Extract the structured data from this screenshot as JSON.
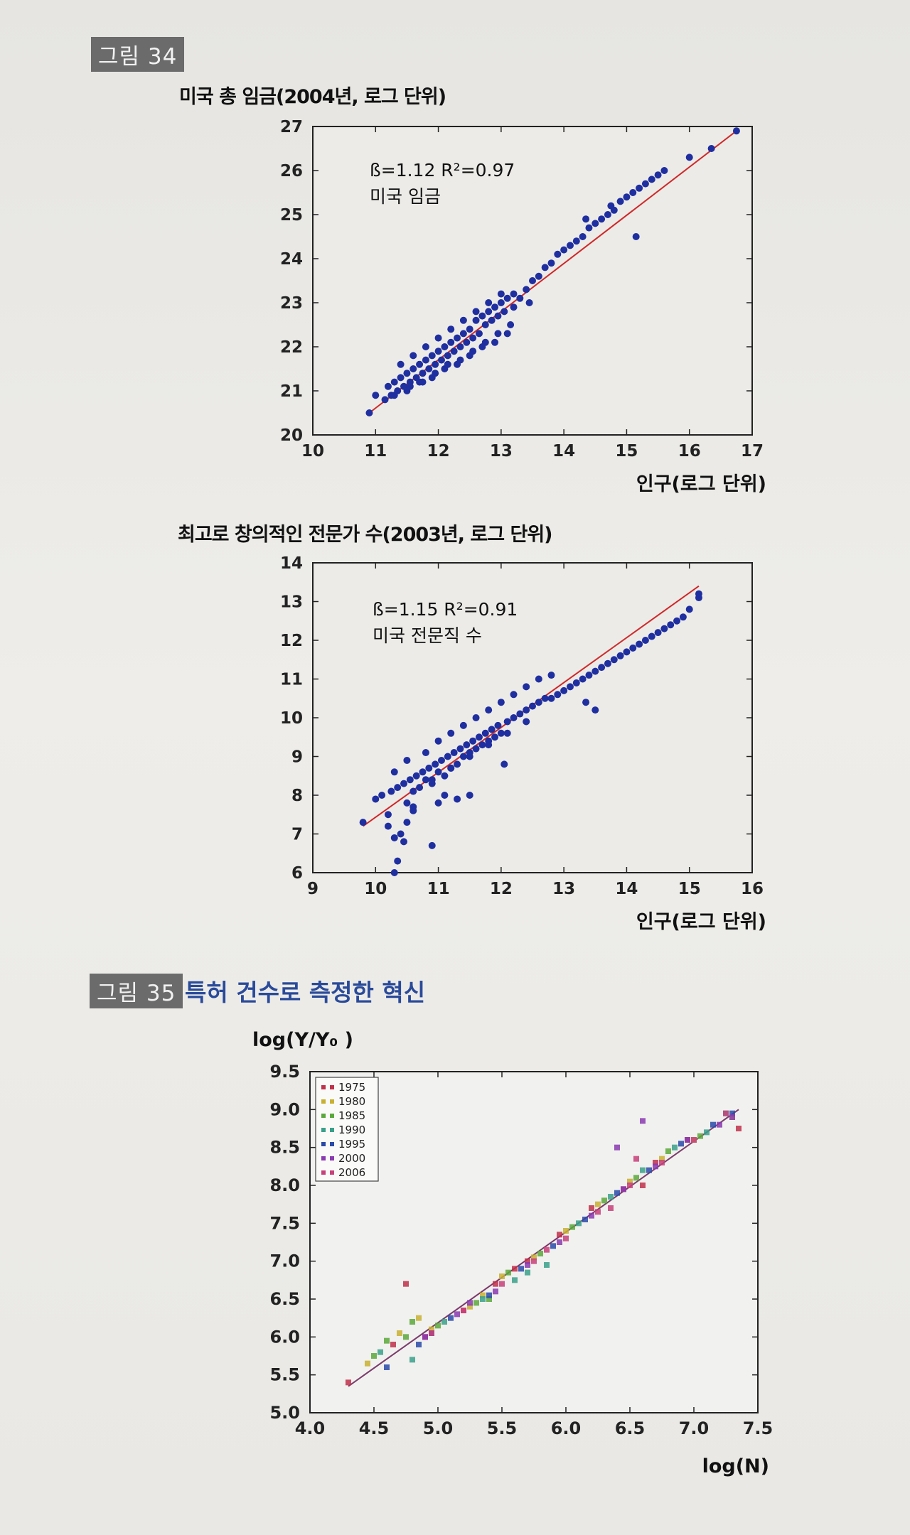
{
  "figure34": {
    "label": "그림 34"
  },
  "figure35": {
    "label": "그림 35",
    "caption": "특허 건수로 측정한 혁신"
  },
  "chart_data": [
    {
      "type": "scatter",
      "title": "미국 총 임금(2004년, 로그 단위)",
      "xlabel": "인구(로그 단위)",
      "ylabel": "",
      "xlim": [
        10,
        17
      ],
      "ylim": [
        20,
        27
      ],
      "xticks": [
        10,
        11,
        12,
        13,
        14,
        15,
        16,
        17
      ],
      "yticks": [
        20,
        21,
        22,
        23,
        24,
        25,
        26,
        27
      ],
      "annotation_line1": "ß=1.12   R²=0.97",
      "annotation_line2": "미국 임금",
      "fit_line": {
        "x": [
          10.9,
          16.75
        ],
        "y": [
          20.5,
          26.9
        ]
      },
      "series": [
        {
          "x": [
            10.9,
            11.0,
            11.15,
            11.2,
            11.25,
            11.3,
            11.35,
            11.4,
            11.45,
            11.5,
            11.55,
            11.6,
            11.65,
            11.7,
            11.75,
            11.8,
            11.85,
            11.9,
            11.95,
            12.0,
            12.05,
            12.1,
            12.15,
            12.2,
            12.25,
            12.3,
            12.35,
            12.4,
            12.45,
            12.5,
            12.55,
            12.6,
            12.65,
            12.7,
            12.75,
            12.8,
            12.85,
            12.9,
            12.95,
            13.0,
            13.05,
            13.1,
            13.2,
            13.3,
            13.4,
            13.5,
            13.6,
            13.7,
            13.8,
            13.9,
            14.0,
            14.1,
            14.2,
            14.3,
            14.4,
            14.5,
            14.6,
            14.7,
            14.8,
            14.9,
            15.0,
            15.1,
            15.2,
            15.3,
            15.4,
            15.5,
            15.6,
            16.0,
            16.35,
            16.75,
            11.3,
            11.5,
            11.7,
            11.9,
            12.1,
            12.3,
            12.5,
            12.7,
            12.9,
            13.1,
            11.4,
            11.6,
            11.8,
            12.0,
            12.2,
            12.4,
            12.6,
            12.8,
            13.0,
            13.2,
            11.55,
            11.75,
            11.95,
            12.15,
            12.35,
            12.55,
            12.75,
            12.95,
            13.15,
            14.35,
            15.15,
            14.75,
            13.45
          ],
          "y": [
            20.5,
            20.9,
            20.8,
            21.1,
            20.9,
            21.2,
            21.0,
            21.3,
            21.1,
            21.4,
            21.2,
            21.5,
            21.3,
            21.6,
            21.4,
            21.7,
            21.5,
            21.8,
            21.6,
            21.9,
            21.7,
            22.0,
            21.8,
            22.1,
            21.9,
            22.2,
            22.0,
            22.3,
            22.1,
            22.4,
            22.2,
            22.6,
            22.3,
            22.7,
            22.5,
            22.8,
            22.6,
            22.9,
            22.7,
            23.0,
            22.8,
            23.1,
            22.9,
            23.1,
            23.3,
            23.5,
            23.6,
            23.8,
            23.9,
            24.1,
            24.2,
            24.3,
            24.4,
            24.5,
            24.7,
            24.8,
            24.9,
            25.0,
            25.1,
            25.3,
            25.4,
            25.5,
            25.6,
            25.7,
            25.8,
            25.9,
            26.0,
            26.3,
            26.5,
            26.9,
            20.9,
            21.0,
            21.2,
            21.3,
            21.5,
            21.6,
            21.8,
            22.0,
            22.1,
            22.3,
            21.6,
            21.8,
            22.0,
            22.2,
            22.4,
            22.6,
            22.8,
            23.0,
            23.2,
            23.2,
            21.1,
            21.2,
            21.4,
            21.6,
            21.7,
            21.9,
            22.1,
            22.3,
            22.5,
            24.9,
            24.5,
            25.2,
            23.0
          ]
        }
      ]
    },
    {
      "type": "scatter",
      "title": "최고로 창의적인 전문가 수(2003년, 로그 단위)",
      "xlabel": "인구(로그 단위)",
      "ylabel": "",
      "xlim": [
        9,
        16
      ],
      "ylim": [
        6,
        14
      ],
      "xticks": [
        9,
        10,
        11,
        12,
        13,
        14,
        15,
        16
      ],
      "yticks": [
        6,
        7,
        8,
        9,
        10,
        11,
        12,
        13,
        14
      ],
      "annotation_line1": "ß=1.15   R²=0.91",
      "annotation_line2": "미국 전문직 수",
      "fit_line": {
        "x": [
          9.8,
          15.15
        ],
        "y": [
          7.2,
          13.4
        ]
      },
      "series": [
        {
          "x": [
            9.8,
            10.0,
            10.1,
            10.2,
            10.25,
            10.3,
            10.35,
            10.4,
            10.45,
            10.5,
            10.55,
            10.6,
            10.65,
            10.7,
            10.75,
            10.8,
            10.85,
            10.9,
            10.95,
            11.0,
            11.05,
            11.1,
            11.15,
            11.2,
            11.25,
            11.3,
            11.35,
            11.4,
            11.45,
            11.5,
            11.55,
            11.6,
            11.65,
            11.7,
            11.75,
            11.8,
            11.85,
            11.9,
            11.95,
            12.0,
            12.1,
            12.2,
            12.3,
            12.4,
            12.5,
            12.6,
            12.7,
            12.8,
            12.9,
            13.0,
            13.1,
            13.2,
            13.3,
            13.4,
            13.5,
            13.6,
            13.7,
            13.8,
            13.9,
            14.0,
            14.1,
            14.2,
            14.3,
            14.4,
            14.5,
            14.6,
            14.7,
            14.8,
            14.9,
            15.0,
            15.15,
            15.15,
            10.2,
            10.3,
            10.35,
            10.45,
            10.5,
            10.6,
            10.9,
            11.0,
            11.1,
            11.3,
            11.5,
            10.3,
            10.5,
            10.8,
            11.0,
            11.2,
            11.4,
            11.6,
            11.8,
            12.0,
            12.2,
            12.4,
            12.6,
            12.8,
            10.6,
            10.9,
            11.2,
            11.5,
            11.8,
            12.1,
            12.4,
            13.35,
            13.5,
            12.05
          ],
          "y": [
            7.3,
            7.9,
            8.0,
            7.5,
            8.1,
            6.0,
            8.2,
            7.0,
            8.3,
            7.8,
            8.4,
            7.7,
            8.5,
            8.2,
            8.6,
            8.4,
            8.7,
            8.3,
            8.8,
            8.6,
            8.9,
            8.5,
            9.0,
            8.7,
            9.1,
            8.8,
            9.2,
            9.0,
            9.3,
            9.1,
            9.4,
            9.2,
            9.5,
            9.3,
            9.6,
            9.4,
            9.7,
            9.5,
            9.8,
            9.6,
            9.9,
            10.0,
            10.1,
            10.2,
            10.3,
            10.4,
            10.5,
            10.5,
            10.6,
            10.7,
            10.8,
            10.9,
            11.0,
            11.1,
            11.2,
            11.3,
            11.4,
            11.5,
            11.6,
            11.7,
            11.8,
            11.9,
            12.0,
            12.1,
            12.2,
            12.3,
            12.4,
            12.5,
            12.6,
            12.8,
            13.1,
            13.2,
            7.2,
            6.9,
            6.3,
            6.8,
            7.3,
            7.6,
            6.7,
            7.8,
            8.0,
            7.9,
            8.0,
            8.6,
            8.9,
            9.1,
            9.4,
            9.6,
            9.8,
            10.0,
            10.2,
            10.4,
            10.6,
            10.8,
            11.0,
            11.1,
            8.1,
            8.4,
            8.7,
            9.0,
            9.3,
            9.6,
            9.9,
            10.4,
            10.2,
            8.8
          ]
        }
      ]
    },
    {
      "type": "scatter",
      "title": "",
      "xlabel": "log(N)",
      "ylabel": "log(Y/Y₀ )",
      "xlim": [
        4.0,
        7.5
      ],
      "ylim": [
        5.0,
        9.5
      ],
      "xticks": [
        "4.0",
        "4.5",
        "5.0",
        "5.5",
        "6.0",
        "6.5",
        "7.0",
        "7.5"
      ],
      "yticks": [
        "5.0",
        "5.5",
        "6.0",
        "6.5",
        "7.0",
        "7.5",
        "8.0",
        "8.5",
        "9.0",
        "9.5"
      ],
      "legend_placement": "top-left",
      "fit_line": {
        "x": [
          4.3,
          7.35
        ],
        "y": [
          5.35,
          9.0
        ]
      },
      "series": [
        {
          "name": "1975",
          "color": "#c0304a",
          "x": [
            4.3,
            4.65,
            4.9,
            5.2,
            5.45,
            5.7,
            5.95,
            6.2,
            6.45,
            6.7,
            6.95,
            7.35,
            4.75,
            5.6,
            6.6
          ],
          "y": [
            5.4,
            5.9,
            6.0,
            6.35,
            6.7,
            7.0,
            7.35,
            7.7,
            7.95,
            8.3,
            8.6,
            8.75,
            6.7,
            6.9,
            8.0
          ]
        },
        {
          "name": "1980",
          "color": "#c8b030",
          "x": [
            4.45,
            4.7,
            4.95,
            5.25,
            5.5,
            5.75,
            6.0,
            6.25,
            6.5,
            6.75,
            7.0,
            7.3,
            4.85,
            5.35
          ],
          "y": [
            5.65,
            6.05,
            6.1,
            6.4,
            6.8,
            7.05,
            7.4,
            7.75,
            8.05,
            8.35,
            8.6,
            8.9,
            6.25,
            6.55
          ]
        },
        {
          "name": "1985",
          "color": "#5aa83a",
          "x": [
            4.5,
            4.75,
            5.0,
            5.3,
            5.55,
            5.8,
            6.05,
            6.3,
            6.55,
            6.8,
            7.05,
            4.6,
            4.8,
            5.4
          ],
          "y": [
            5.75,
            6.0,
            6.15,
            6.45,
            6.85,
            7.1,
            7.45,
            7.8,
            8.1,
            8.45,
            8.65,
            5.95,
            6.2,
            6.5
          ]
        },
        {
          "name": "1990",
          "color": "#3aa08a",
          "x": [
            4.55,
            4.8,
            5.05,
            5.35,
            5.6,
            5.85,
            6.1,
            6.35,
            6.6,
            6.85,
            7.1,
            7.25,
            5.7
          ],
          "y": [
            5.8,
            5.7,
            6.2,
            6.5,
            6.75,
            6.95,
            7.5,
            7.85,
            8.2,
            8.5,
            8.7,
            8.95,
            6.85
          ]
        },
        {
          "name": "1995",
          "color": "#2a4aa8",
          "x": [
            4.6,
            4.85,
            5.1,
            5.4,
            5.65,
            5.9,
            6.15,
            6.4,
            6.65,
            6.9,
            7.15,
            7.3,
            4.95
          ],
          "y": [
            5.6,
            5.9,
            6.25,
            6.55,
            6.9,
            7.2,
            7.55,
            7.9,
            8.2,
            8.55,
            8.8,
            8.95,
            6.05
          ]
        },
        {
          "name": "2000",
          "color": "#8a3ab0",
          "x": [
            4.9,
            5.15,
            5.45,
            5.7,
            5.95,
            6.2,
            6.45,
            6.7,
            6.95,
            7.2,
            7.3,
            6.4,
            6.6,
            5.25
          ],
          "y": [
            6.0,
            6.3,
            6.6,
            6.95,
            7.25,
            7.6,
            7.95,
            8.25,
            8.6,
            8.8,
            8.9,
            8.5,
            8.85,
            6.45
          ]
        },
        {
          "name": "2006",
          "color": "#c8407a",
          "x": [
            4.95,
            5.2,
            5.5,
            5.75,
            6.0,
            6.25,
            6.5,
            6.75,
            7.0,
            7.25,
            5.85,
            6.35,
            6.55
          ],
          "y": [
            6.05,
            6.35,
            6.7,
            7.0,
            7.3,
            7.65,
            8.0,
            8.3,
            8.6,
            8.95,
            7.15,
            7.7,
            8.35
          ]
        }
      ]
    }
  ]
}
